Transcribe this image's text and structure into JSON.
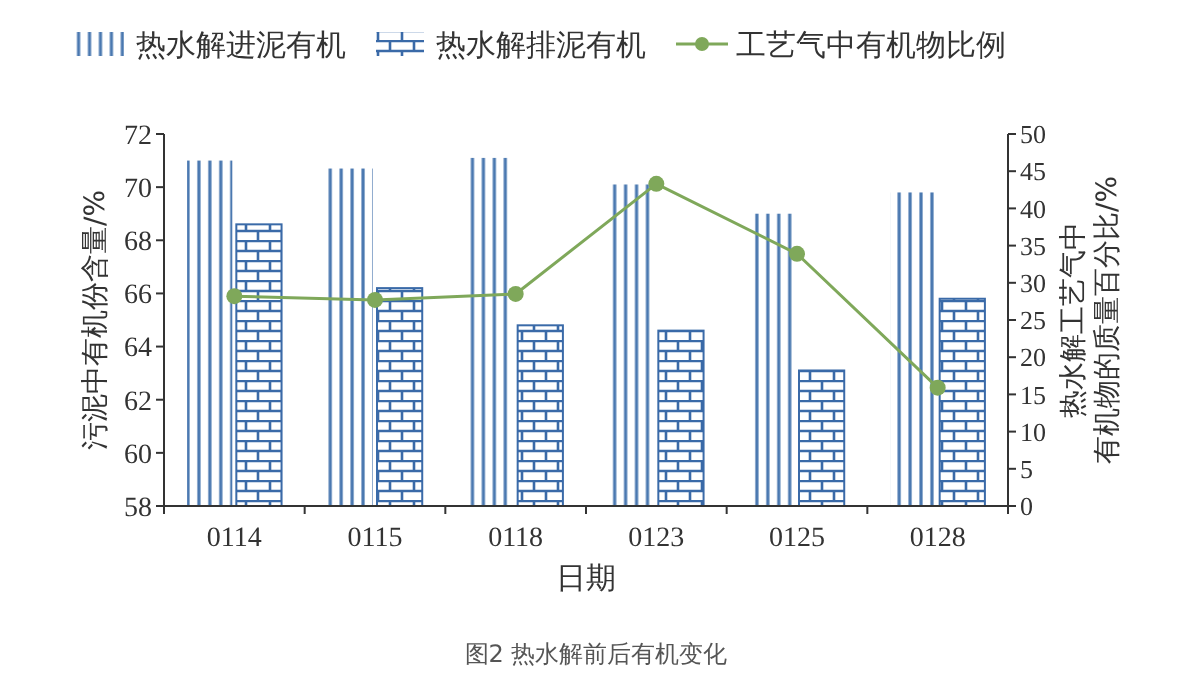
{
  "chart_data": {
    "type": "bar",
    "title": "图2 热水解前后有机变化",
    "xlabel": "日期",
    "ylabel": "污泥中有机份含量/%",
    "y2label": "热水解工艺气中有机物的质量百分比/%",
    "categories": [
      "0114",
      "0115",
      "0118",
      "0123",
      "0125",
      "0128"
    ],
    "series": [
      {
        "name": "热水解进泥有机",
        "color": "#4a78b0",
        "values": [
          71.0,
          70.7,
          71.1,
          70.1,
          69.0,
          69.8
        ]
      },
      {
        "name": "热水解排泥有机",
        "color": "#3a6aa8",
        "values": [
          68.6,
          66.2,
          64.8,
          64.6,
          63.1,
          65.8
        ]
      },
      {
        "name": "工艺气中有机物比例",
        "type": "line",
        "axis": "y2",
        "color": "#7fa85a",
        "marker": "circle",
        "values": [
          28.2,
          27.7,
          28.5,
          43.3,
          33.9,
          15.9
        ]
      }
    ],
    "ylim": [
      58,
      72
    ],
    "yticks": [
      58,
      60,
      62,
      64,
      66,
      68,
      70,
      72
    ],
    "y2lim": [
      0,
      50
    ],
    "y2ticks": [
      0,
      5,
      10,
      15,
      20,
      25,
      30,
      35,
      40,
      45,
      50
    ],
    "legend": "top",
    "grid": false
  }
}
